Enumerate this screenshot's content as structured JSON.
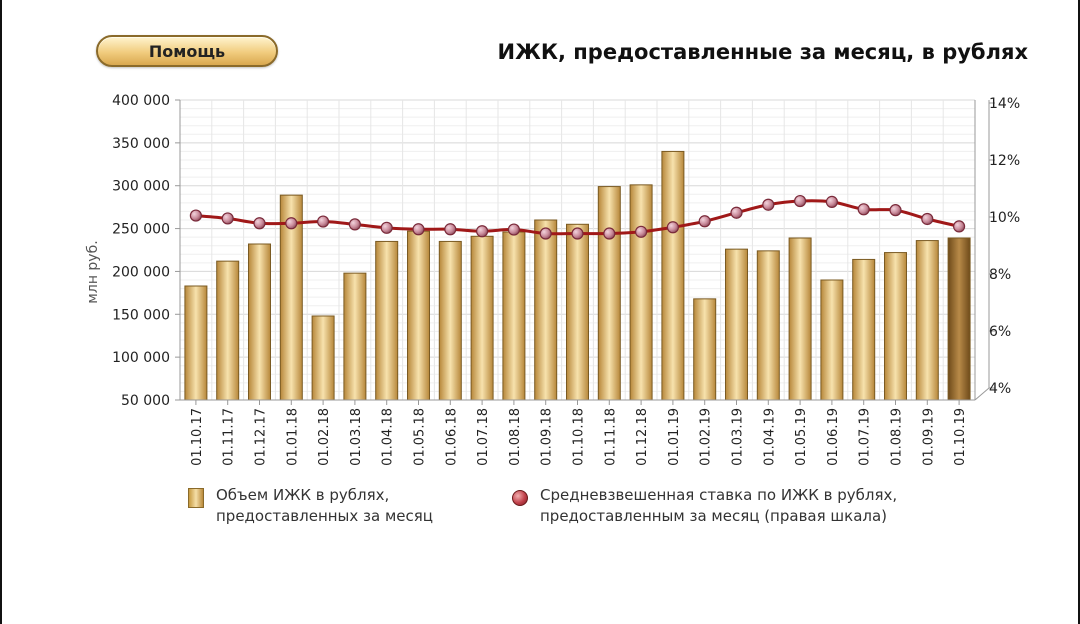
{
  "help_button": {
    "label": "Помощь"
  },
  "chart_data": {
    "type": "bar",
    "title": "ИЖК, предоставленные за месяц, в рублях",
    "ylabel": "млн руб.",
    "ylim": [
      50000,
      400000
    ],
    "y_ticks": [
      {
        "value": 400000,
        "label": "400 000"
      },
      {
        "value": 350000,
        "label": "350 000"
      },
      {
        "value": 300000,
        "label": "300 000"
      },
      {
        "value": 250000,
        "label": "250 000"
      },
      {
        "value": 200000,
        "label": "200 000"
      },
      {
        "value": 150000,
        "label": "150 000"
      },
      {
        "value": 100000,
        "label": "100 000"
      },
      {
        "value": 50000,
        "label": "50 000"
      }
    ],
    "y2_ticks": [
      {
        "value": 14,
        "label": "14%"
      },
      {
        "value": 12,
        "label": "12%"
      },
      {
        "value": 10,
        "label": "10%"
      },
      {
        "value": 8,
        "label": "8%"
      },
      {
        "value": 6,
        "label": "6%"
      },
      {
        "value": 4,
        "label": "4%"
      }
    ],
    "categories": [
      "01.10.17",
      "01.11.17",
      "01.12.17",
      "01.01.18",
      "01.02.18",
      "01.03.18",
      "01.04.18",
      "01.05.18",
      "01.06.18",
      "01.07.18",
      "01.08.18",
      "01.09.18",
      "01.10.18",
      "01.11.18",
      "01.12.18",
      "01.01.19",
      "01.02.19",
      "01.03.19",
      "01.04.19",
      "01.05.19",
      "01.06.19",
      "01.07.19",
      "01.08.19",
      "01.09.19",
      "01.10.19"
    ],
    "series": [
      {
        "name": "Объем ИЖК в рублях, предоставленных за месяц",
        "type": "bar",
        "axis": "left",
        "values": [
          183000,
          212000,
          232000,
          289000,
          148000,
          198000,
          235000,
          247000,
          235000,
          241000,
          246000,
          260000,
          255000,
          299000,
          301000,
          340000,
          168000,
          226000,
          224000,
          239000,
          190000,
          214000,
          222000,
          236000,
          239000
        ]
      },
      {
        "name": "Средневзвешенная ставка по ИЖК в рублях, предоставленным за месяц (правая шкала)",
        "type": "line",
        "axis": "right",
        "values": [
          10.05,
          9.95,
          9.78,
          9.78,
          9.84,
          9.74,
          9.62,
          9.57,
          9.57,
          9.5,
          9.56,
          9.42,
          9.42,
          9.42,
          9.48,
          9.64,
          9.85,
          10.15,
          10.43,
          10.56,
          10.53,
          10.27,
          10.24,
          9.93,
          9.67
        ]
      }
    ],
    "legend": {
      "position": "bottom",
      "bar_line1": "Объем ИЖК в рублях,",
      "bar_line2": "предоставленных за месяц",
      "line_line1": "Средневзвешенная ставка по ИЖК  в рублях,",
      "line_line2": "предоставленным за месяц (правая шкала)"
    },
    "colors": {
      "bar_light": "#f7e2ad",
      "bar_dark": "#b7873a",
      "bar_edge": "#7a5a22",
      "last_bar_dark": "#6e4a1a",
      "last_bar_light": "#b88a48",
      "line": "#a01818",
      "marker_fill": "#c98a9a",
      "grid": "#dddddd",
      "axis": "#999999"
    },
    "grid": true
  }
}
